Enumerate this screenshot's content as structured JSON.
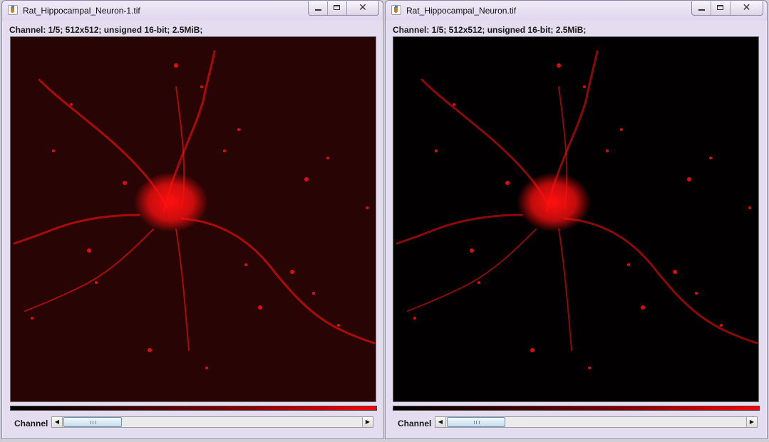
{
  "windows": [
    {
      "title": "Rat_Hippocampal_Neuron-1.tif",
      "info": "Channel: 1/5; 512x512; unsigned 16-bit; 2.5MiB;",
      "slider_label": "Channel",
      "slider_fraction": 0.2,
      "image_style": "dim-red-background",
      "close_glyph": "✕"
    },
    {
      "title": "Rat_Hippocampal_Neuron.tif",
      "info": "Channel: 1/5; 512x512; unsigned 16-bit; 2.5MiB;",
      "slider_label": "Channel",
      "slider_fraction": 0.2,
      "image_style": "black-background",
      "close_glyph": "✕"
    }
  ],
  "icons": {
    "app": "java-app-icon",
    "minimize": "minimize-icon",
    "maximize": "maximize-icon",
    "close": "close-icon",
    "scroll_left": "◀",
    "scroll_right": "▶"
  },
  "colors": {
    "signal": "#ff1010",
    "lut_start": "#000000",
    "lut_end": "#ff0000"
  }
}
